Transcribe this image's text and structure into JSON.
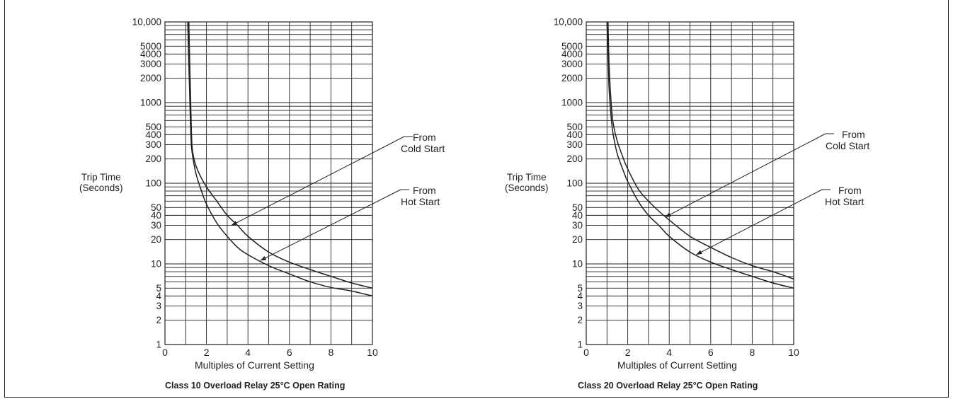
{
  "chart_data": [
    {
      "type": "line",
      "title": "Class 10 Overload Relay 25°C Open Rating",
      "xlabel": "Multiples of Current Setting",
      "ylabel_line1": "Trip Time",
      "ylabel_line2": "(Seconds)",
      "xlim": [
        0,
        10
      ],
      "ylim": [
        1,
        10000
      ],
      "yscale": "log",
      "grid": true,
      "xticks": [
        "0",
        "2",
        "4",
        "6",
        "8",
        "10"
      ],
      "yticks": [
        {
          "v": 1,
          "label": "1"
        },
        {
          "v": 2,
          "label": "2"
        },
        {
          "v": 3,
          "label": "3"
        },
        {
          "v": 4,
          "label": "4"
        },
        {
          "v": 5,
          "label": "5"
        },
        {
          "v": 10,
          "label": "10"
        },
        {
          "v": 20,
          "label": "20"
        },
        {
          "v": 30,
          "label": "30"
        },
        {
          "v": 40,
          "label": "40"
        },
        {
          "v": 50,
          "label": "50"
        },
        {
          "v": 100,
          "label": "100"
        },
        {
          "v": 200,
          "label": "200"
        },
        {
          "v": 300,
          "label": "300"
        },
        {
          "v": 400,
          "label": "400"
        },
        {
          "v": 500,
          "label": "500"
        },
        {
          "v": 1000,
          "label": "1000"
        },
        {
          "v": 2000,
          "label": "2000"
        },
        {
          "v": 3000,
          "label": "3000"
        },
        {
          "v": 4000,
          "label": "4000"
        },
        {
          "v": 5000,
          "label": "5000"
        },
        {
          "v": 10000,
          "label": "10,000"
        }
      ],
      "series": [
        {
          "name": "From Cold Start",
          "x": [
            1.15,
            1.2,
            1.25,
            1.3,
            1.4,
            1.6,
            2.0,
            2.5,
            3.0,
            3.5,
            4.0,
            5.0,
            6.0,
            7.0,
            8.0,
            9.0,
            10.0
          ],
          "y": [
            10000,
            2500,
            800,
            300,
            200,
            140,
            90,
            60,
            40,
            30,
            22,
            14,
            10.5,
            8.5,
            7,
            5.8,
            5
          ]
        },
        {
          "name": "From Hot Start",
          "x": [
            1.1,
            1.15,
            1.2,
            1.25,
            1.3,
            1.5,
            1.8,
            2.0,
            2.5,
            3.0,
            3.5,
            4.0,
            5.0,
            6.0,
            7.0,
            8.0,
            9.0,
            10.0
          ],
          "y": [
            10000,
            3000,
            1000,
            400,
            250,
            130,
            75,
            55,
            32,
            22,
            16,
            13,
            9.5,
            7.5,
            6,
            5.1,
            4.6,
            4
          ]
        }
      ],
      "annotations": [
        {
          "text_line1": "From",
          "text_line2": "Cold Start",
          "target_x": 3.2,
          "target_y": 30
        },
        {
          "text_line1": "From",
          "text_line2": "Hot Start",
          "target_x": 4.6,
          "target_y": 11
        }
      ]
    },
    {
      "type": "line",
      "title": "Class 20 Overload Relay 25°C Open Rating",
      "xlabel": "Multiples of Current Setting",
      "ylabel_line1": "Trip Time",
      "ylabel_line2": "(Seconds)",
      "xlim": [
        0,
        10
      ],
      "ylim": [
        1,
        10000
      ],
      "yscale": "log",
      "grid": true,
      "xticks": [
        "0",
        "2",
        "4",
        "6",
        "8",
        "10"
      ],
      "yticks": [
        {
          "v": 1,
          "label": "1"
        },
        {
          "v": 2,
          "label": "2"
        },
        {
          "v": 3,
          "label": "3"
        },
        {
          "v": 4,
          "label": "4"
        },
        {
          "v": 5,
          "label": "5"
        },
        {
          "v": 10,
          "label": "10"
        },
        {
          "v": 20,
          "label": "20"
        },
        {
          "v": 30,
          "label": "30"
        },
        {
          "v": 40,
          "label": "40"
        },
        {
          "v": 50,
          "label": "50"
        },
        {
          "v": 100,
          "label": "100"
        },
        {
          "v": 200,
          "label": "200"
        },
        {
          "v": 300,
          "label": "300"
        },
        {
          "v": 400,
          "label": "400"
        },
        {
          "v": 500,
          "label": "500"
        },
        {
          "v": 1000,
          "label": "1000"
        },
        {
          "v": 2000,
          "label": "2000"
        },
        {
          "v": 3000,
          "label": "3000"
        },
        {
          "v": 4000,
          "label": "4000"
        },
        {
          "v": 5000,
          "label": "5000"
        },
        {
          "v": 10000,
          "label": "10,000"
        }
      ],
      "series": [
        {
          "name": "From Cold Start",
          "x": [
            1.05,
            1.1,
            1.2,
            1.3,
            1.5,
            1.8,
            2.0,
            2.5,
            3.0,
            3.5,
            4.0,
            5.0,
            6.0,
            7.0,
            8.0,
            9.0,
            10.0
          ],
          "y": [
            10000,
            3000,
            1000,
            550,
            330,
            200,
            150,
            85,
            60,
            45,
            35,
            22,
            16,
            12,
            9.5,
            8,
            6.5
          ]
        },
        {
          "name": "From Hot Start",
          "x": [
            1.0,
            1.05,
            1.1,
            1.2,
            1.3,
            1.5,
            1.8,
            2.0,
            2.5,
            3.0,
            3.5,
            4.0,
            5.0,
            6.0,
            7.0,
            8.0,
            9.0,
            10.0
          ],
          "y": [
            10000,
            4000,
            1500,
            650,
            400,
            230,
            140,
            105,
            60,
            40,
            30,
            22,
            14,
            10.5,
            8.5,
            7,
            5.8,
            5
          ]
        }
      ],
      "annotations": [
        {
          "text_line1": "From",
          "text_line2": "Cold Start",
          "target_x": 3.8,
          "target_y": 38
        },
        {
          "text_line1": "From",
          "text_line2": "Hot Start",
          "target_x": 5.3,
          "target_y": 13
        }
      ]
    }
  ]
}
